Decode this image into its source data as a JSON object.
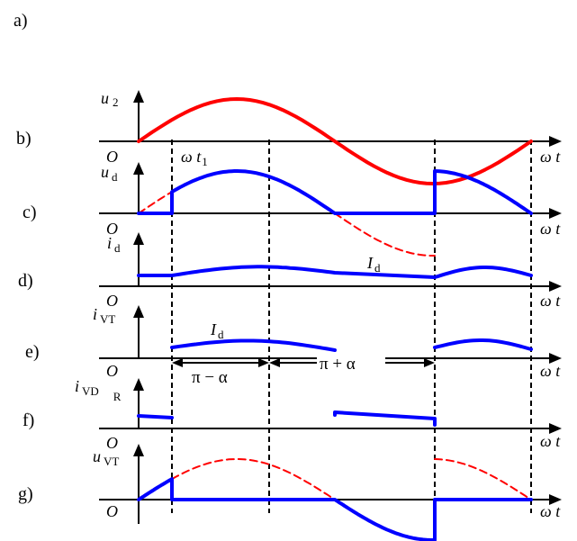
{
  "panel_labels": {
    "a": "a)",
    "b": "b)",
    "c": "c)",
    "d": "d)",
    "e": "e)",
    "f": "f)",
    "g": "g)"
  },
  "axis": {
    "origin": "O",
    "omega": "ω",
    "t": "t"
  },
  "symbols": {
    "u": "u",
    "i": "i",
    "sub_2": "2",
    "sub_d": "d",
    "sub_VT": "VT",
    "sub_VD": "VD",
    "sub_R": "R",
    "I": "I",
    "omega_t": "ω t",
    "t1_sub": "1"
  },
  "annotations": {
    "pi_minus_alpha": "π − α",
    "pi_plus_alpha": "π + α"
  },
  "colors": {
    "source": "#ff0000",
    "waveform": "#0000ff",
    "axis": "#000000"
  }
}
